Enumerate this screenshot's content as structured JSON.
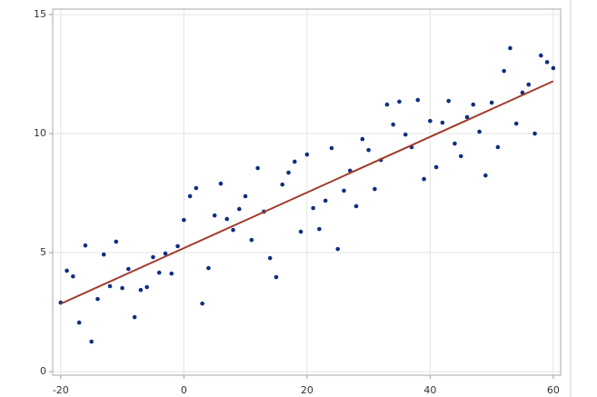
{
  "chart_data": {
    "type": "scatter",
    "xlim": [
      -21.3,
      61.2
    ],
    "ylim": [
      -0.15,
      15.23
    ],
    "xticks": [
      -20,
      0,
      20,
      40,
      60
    ],
    "yticks": [
      0,
      5,
      10,
      15
    ],
    "grid": true,
    "series": [
      {
        "type": "scatter",
        "color": "#0d2f7f",
        "x": [
          -20,
          -19,
          -18,
          -17,
          -16,
          -15,
          -14,
          -13,
          -12,
          -11,
          -10,
          -9,
          -8,
          -7,
          -6,
          -5,
          -4,
          -3,
          -2,
          -1,
          0,
          1,
          2,
          3,
          4,
          5,
          6,
          7,
          8,
          9,
          10,
          11,
          12,
          13,
          14,
          15,
          16,
          17,
          18,
          19,
          20,
          21,
          22,
          23,
          24,
          25,
          26,
          27,
          28,
          29,
          30,
          31,
          32,
          33,
          34,
          35,
          36,
          37,
          38,
          39,
          40,
          41,
          42,
          43,
          44,
          45,
          46,
          47,
          48,
          49,
          50,
          51,
          52,
          53,
          54,
          55,
          56,
          57,
          58,
          59,
          60
        ],
        "values": [
          2.9,
          4.24,
          4.0,
          2.06,
          5.3,
          1.26,
          3.05,
          4.92,
          3.59,
          5.46,
          3.51,
          4.31,
          2.29,
          3.43,
          3.55,
          4.81,
          4.16,
          4.96,
          4.12,
          5.27,
          6.37,
          7.37,
          7.71,
          2.86,
          4.35,
          6.56,
          7.9,
          6.41,
          5.95,
          6.83,
          7.37,
          5.53,
          8.55,
          6.72,
          4.77,
          3.97,
          7.86,
          8.36,
          8.82,
          5.88,
          9.12,
          6.87,
          5.99,
          7.18,
          9.39,
          5.15,
          7.6,
          8.44,
          6.95,
          9.77,
          9.31,
          7.67,
          8.89,
          11.22,
          10.38,
          11.34,
          9.96,
          9.43,
          11.41,
          8.09,
          10.53,
          8.59,
          10.46,
          11.37,
          9.58,
          9.05,
          10.69,
          11.22,
          10.08,
          8.24,
          11.3,
          9.43,
          12.63,
          13.59,
          10.42,
          11.72,
          12.06,
          10.0,
          13.28,
          13.0,
          12.75
        ]
      },
      {
        "type": "line",
        "color": "#a23b2c",
        "x": [
          -20,
          60
        ],
        "values": [
          2.85,
          12.2
        ]
      }
    ]
  }
}
